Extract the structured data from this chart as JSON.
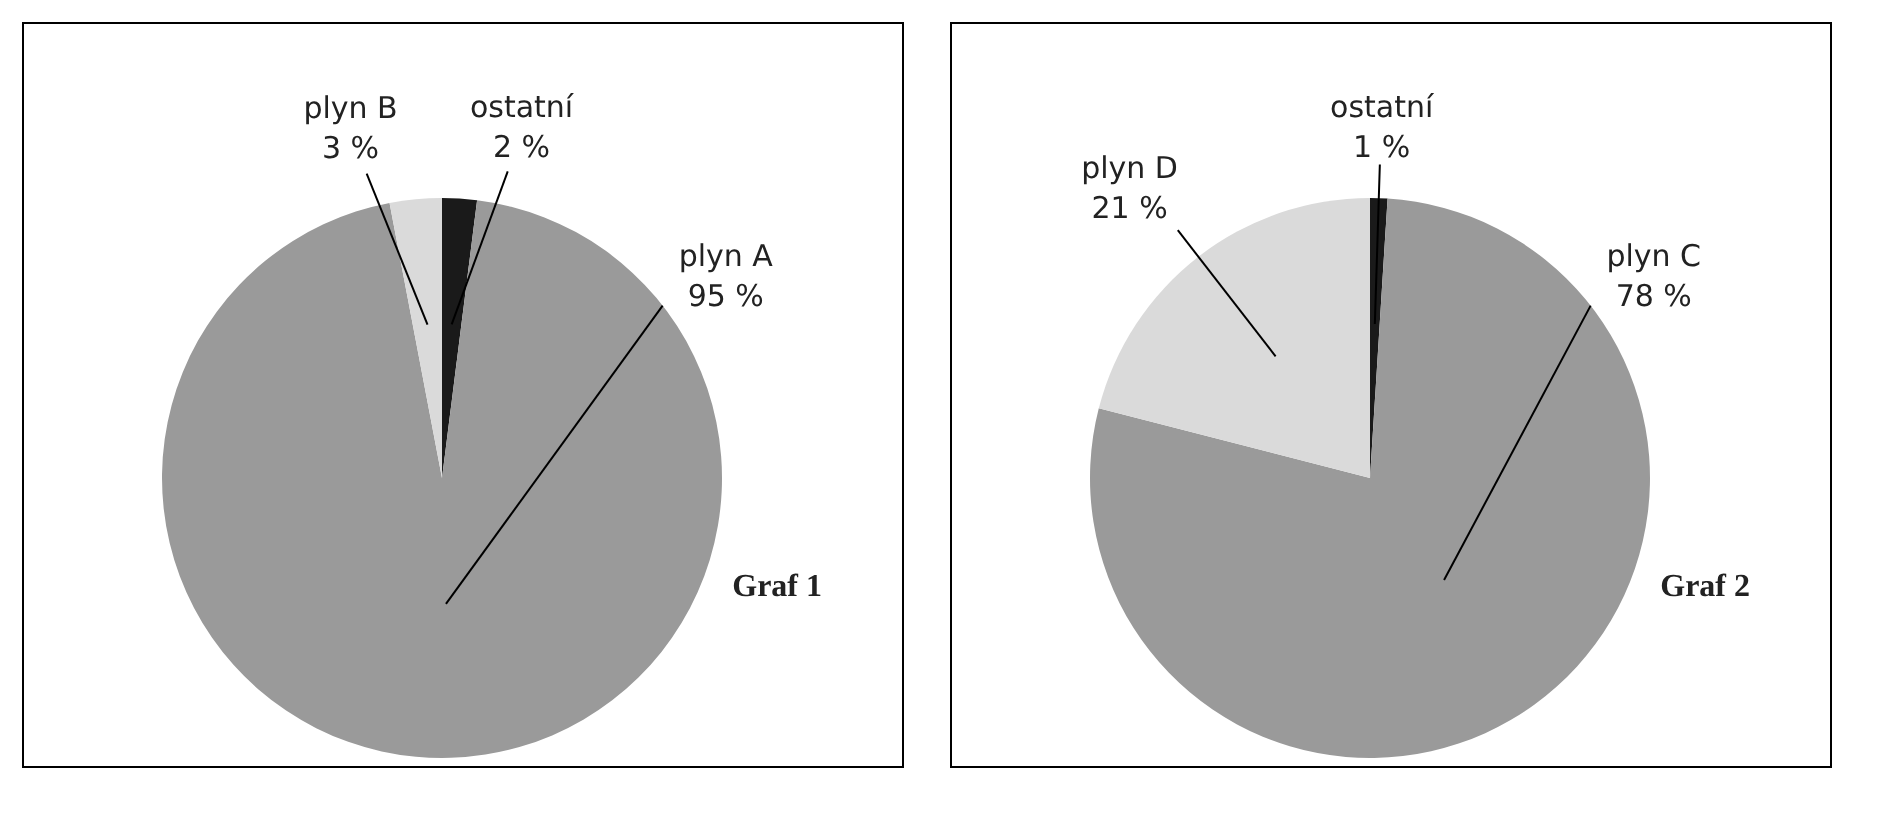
{
  "chart_data": [
    {
      "type": "pie",
      "categories": [
        "ostatní",
        "plyn A",
        "plyn B"
      ],
      "values": [
        2,
        95,
        3
      ],
      "colors": [
        "#1a1a1a",
        "#9a9a9a",
        "#dadada"
      ],
      "value_labels": [
        "2 %",
        "95 %",
        "3 %"
      ],
      "annotations": [
        "Graf 1"
      ]
    },
    {
      "type": "pie",
      "categories": [
        "ostatní",
        "plyn C",
        "plyn D"
      ],
      "values": [
        1,
        78,
        21
      ],
      "colors": [
        "#1a1a1a",
        "#9a9a9a",
        "#dadada"
      ],
      "value_labels": [
        "1 %",
        "78 %",
        "21 %"
      ],
      "annotations": [
        "Graf 2"
      ]
    }
  ]
}
